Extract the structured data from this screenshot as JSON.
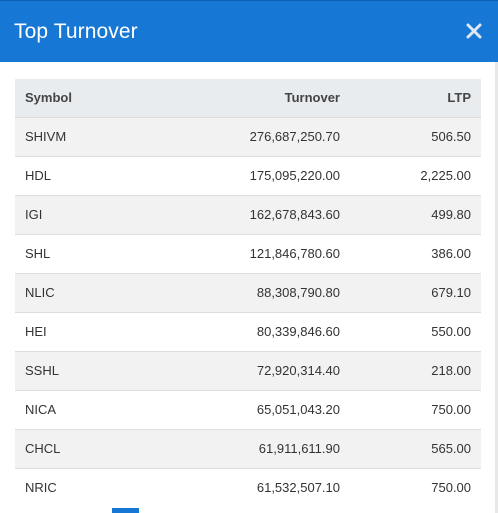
{
  "modal": {
    "title": "Top Turnover",
    "close_icon": "close-icon"
  },
  "table": {
    "headers": [
      "Symbol",
      "Turnover",
      "LTP"
    ],
    "rows": [
      {
        "symbol": "SHIVM",
        "turnover": "276,687,250.70",
        "ltp": "506.50"
      },
      {
        "symbol": "HDL",
        "turnover": "175,095,220.00",
        "ltp": "2,225.00"
      },
      {
        "symbol": "IGI",
        "turnover": "162,678,843.60",
        "ltp": "499.80"
      },
      {
        "symbol": "SHL",
        "turnover": "121,846,780.60",
        "ltp": "386.00"
      },
      {
        "symbol": "NLIC",
        "turnover": "88,308,790.80",
        "ltp": "679.10"
      },
      {
        "symbol": "HEI",
        "turnover": "80,339,846.60",
        "ltp": "550.00"
      },
      {
        "symbol": "SSHL",
        "turnover": "72,920,314.40",
        "ltp": "218.00"
      },
      {
        "symbol": "NICA",
        "turnover": "65,051,043.20",
        "ltp": "750.00"
      },
      {
        "symbol": "CHCL",
        "turnover": "61,911,611.90",
        "ltp": "565.00"
      },
      {
        "symbol": "NRIC",
        "turnover": "61,532,507.10",
        "ltp": "750.00"
      }
    ]
  },
  "colors": {
    "header_bg": "#1777d4",
    "table_header_bg": "#e9ecef",
    "stripe_bg": "#f2f2f2"
  }
}
